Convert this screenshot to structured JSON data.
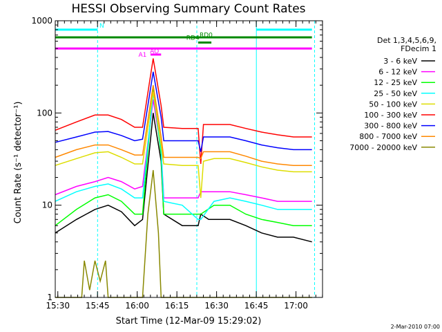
{
  "chart_data": {
    "type": "line",
    "title": "HESSI Observing Summary Count Rates",
    "xlabel": "Start Time (12-Mar-09 15:29:02)",
    "ylabel": "Count Rate (s⁻¹ detector⁻¹)",
    "ylog": true,
    "ylim": [
      1,
      1000
    ],
    "xlim_minutes": [
      0,
      101
    ],
    "x_unit": "minutes after 15:29:02",
    "x_ticks": [
      {
        "m": 0.97,
        "label": "15:30"
      },
      {
        "m": 15.97,
        "label": "15:45"
      },
      {
        "m": 30.97,
        "label": "16:00"
      },
      {
        "m": 45.97,
        "label": "16:15"
      },
      {
        "m": 60.97,
        "label": "16:30"
      },
      {
        "m": 75.97,
        "label": "16:45"
      },
      {
        "m": 90.97,
        "label": "17:00"
      }
    ],
    "y_ticks": [
      {
        "v": 1,
        "label": "1"
      },
      {
        "v": 10,
        "label": "10"
      },
      {
        "v": 100,
        "label": "100"
      },
      {
        "v": 1000,
        "label": "1000"
      }
    ],
    "legend_header": [
      "Det 1,3,4,5,6,9,",
      "FDecim 1"
    ],
    "legend_position": "right",
    "footer": "2-Mar-2010 07:00",
    "series": [
      {
        "name": "3 - 6 keV",
        "color": "#000000",
        "points": [
          [
            0,
            5
          ],
          [
            8,
            7
          ],
          [
            15,
            9
          ],
          [
            20,
            10
          ],
          [
            25,
            8.5
          ],
          [
            30,
            6
          ],
          [
            33,
            7
          ],
          [
            37,
            100
          ],
          [
            40,
            30
          ],
          [
            41,
            8
          ],
          [
            48,
            6
          ],
          [
            54,
            6
          ],
          [
            55,
            8
          ],
          [
            58,
            7
          ],
          [
            66,
            7
          ],
          [
            72,
            6
          ],
          [
            78,
            5
          ],
          [
            84,
            4.5
          ],
          [
            90,
            4.5
          ],
          [
            97,
            4
          ]
        ]
      },
      {
        "name": "6 - 12 keV",
        "color": "#ff00ff",
        "points": [
          [
            0,
            13
          ],
          [
            8,
            16
          ],
          [
            15,
            18
          ],
          [
            20,
            20
          ],
          [
            25,
            18
          ],
          [
            30,
            15
          ],
          [
            33,
            16
          ],
          [
            37,
            140
          ],
          [
            40,
            40
          ],
          [
            41,
            12
          ],
          [
            48,
            12
          ],
          [
            54,
            12
          ],
          [
            55,
            14
          ],
          [
            60,
            14
          ],
          [
            66,
            14
          ],
          [
            72,
            13
          ],
          [
            78,
            12
          ],
          [
            84,
            11
          ],
          [
            90,
            11
          ],
          [
            97,
            11
          ]
        ]
      },
      {
        "name": "12 - 25 keV",
        "color": "#00ff00",
        "points": [
          [
            0,
            6
          ],
          [
            8,
            9
          ],
          [
            15,
            12
          ],
          [
            20,
            13
          ],
          [
            25,
            11
          ],
          [
            30,
            8
          ],
          [
            33,
            8
          ],
          [
            37,
            190
          ],
          [
            40,
            35
          ],
          [
            41,
            8
          ],
          [
            48,
            8
          ],
          [
            54,
            8
          ],
          [
            55,
            8
          ],
          [
            60,
            10
          ],
          [
            66,
            10
          ],
          [
            72,
            8
          ],
          [
            78,
            7
          ],
          [
            84,
            6.5
          ],
          [
            90,
            6
          ],
          [
            97,
            6
          ]
        ]
      },
      {
        "name": "25 - 50 keV",
        "color": "#00ffff",
        "points": [
          [
            0,
            11
          ],
          [
            8,
            14
          ],
          [
            15,
            16
          ],
          [
            20,
            17
          ],
          [
            25,
            15
          ],
          [
            30,
            12
          ],
          [
            33,
            12
          ],
          [
            37,
            165
          ],
          [
            40,
            40
          ],
          [
            41,
            11
          ],
          [
            48,
            10
          ],
          [
            54,
            7
          ],
          [
            55,
            7
          ],
          [
            60,
            11
          ],
          [
            66,
            12
          ],
          [
            72,
            11
          ],
          [
            78,
            10
          ],
          [
            84,
            9
          ],
          [
            90,
            9
          ],
          [
            97,
            9
          ]
        ]
      },
      {
        "name": "50 - 100 keV",
        "color": "#dddd00",
        "points": [
          [
            0,
            27
          ],
          [
            8,
            32
          ],
          [
            15,
            37
          ],
          [
            20,
            38
          ],
          [
            25,
            33
          ],
          [
            30,
            28
          ],
          [
            33,
            28
          ],
          [
            37,
            170
          ],
          [
            40,
            45
          ],
          [
            41,
            28
          ],
          [
            48,
            27
          ],
          [
            54,
            27
          ],
          [
            55,
            12
          ],
          [
            56,
            30
          ],
          [
            60,
            32
          ],
          [
            66,
            32
          ],
          [
            72,
            29
          ],
          [
            78,
            26
          ],
          [
            84,
            24
          ],
          [
            90,
            23
          ],
          [
            97,
            23
          ]
        ]
      },
      {
        "name": "100 - 300 keV",
        "color": "#ff0000",
        "points": [
          [
            0,
            65
          ],
          [
            8,
            80
          ],
          [
            15,
            95
          ],
          [
            20,
            95
          ],
          [
            25,
            85
          ],
          [
            30,
            70
          ],
          [
            33,
            70
          ],
          [
            37,
            390
          ],
          [
            40,
            120
          ],
          [
            41,
            70
          ],
          [
            48,
            68
          ],
          [
            54,
            68
          ],
          [
            55,
            28
          ],
          [
            56,
            75
          ],
          [
            60,
            75
          ],
          [
            66,
            75
          ],
          [
            72,
            68
          ],
          [
            78,
            62
          ],
          [
            84,
            58
          ],
          [
            90,
            55
          ],
          [
            97,
            55
          ]
        ]
      },
      {
        "name": "300 - 800 keV",
        "color": "#0000ff",
        "points": [
          [
            0,
            48
          ],
          [
            8,
            55
          ],
          [
            15,
            62
          ],
          [
            20,
            63
          ],
          [
            25,
            57
          ],
          [
            30,
            50
          ],
          [
            33,
            52
          ],
          [
            37,
            280
          ],
          [
            40,
            90
          ],
          [
            41,
            50
          ],
          [
            48,
            50
          ],
          [
            54,
            50
          ],
          [
            55,
            38
          ],
          [
            56,
            55
          ],
          [
            60,
            55
          ],
          [
            66,
            55
          ],
          [
            72,
            50
          ],
          [
            78,
            45
          ],
          [
            84,
            42
          ],
          [
            90,
            40
          ],
          [
            97,
            40
          ]
        ]
      },
      {
        "name": "800 - 7000 keV",
        "color": "#ff8800",
        "points": [
          [
            0,
            33
          ],
          [
            8,
            40
          ],
          [
            15,
            45
          ],
          [
            20,
            45
          ],
          [
            25,
            40
          ],
          [
            30,
            35
          ],
          [
            33,
            35
          ],
          [
            37,
            200
          ],
          [
            40,
            55
          ],
          [
            41,
            33
          ],
          [
            48,
            33
          ],
          [
            54,
            33
          ],
          [
            55,
            32
          ],
          [
            56,
            38
          ],
          [
            60,
            38
          ],
          [
            66,
            38
          ],
          [
            72,
            34
          ],
          [
            78,
            30
          ],
          [
            84,
            28
          ],
          [
            90,
            27
          ],
          [
            97,
            27
          ]
        ]
      },
      {
        "name": "7000 - 20000 keV",
        "color": "#888800",
        "points": [
          [
            0,
            1
          ],
          [
            10,
            1
          ],
          [
            11,
            2.5
          ],
          [
            13,
            1.2
          ],
          [
            15,
            2.5
          ],
          [
            17,
            1.5
          ],
          [
            19,
            2.5
          ],
          [
            20,
            1
          ],
          [
            33,
            1
          ],
          [
            35,
            8
          ],
          [
            37,
            24
          ],
          [
            39,
            5
          ],
          [
            40,
            1
          ],
          [
            97,
            1
          ]
        ]
      }
    ],
    "annotations": {
      "upper_lines": [
        {
          "label": "N",
          "color": "#00ffff",
          "segments": [
            [
              0,
              16
            ],
            [
              76,
              97
            ]
          ],
          "level": 800
        },
        {
          "label": "",
          "color": "#008800",
          "segments": [
            [
              0,
              97
            ]
          ],
          "level": 660
        },
        {
          "label": "RD4",
          "color": "#008800",
          "segments": [
            [
              54,
              59
            ]
          ],
          "level": 580
        },
        {
          "label": "RD0",
          "color": "#008800",
          "segments": [],
          "level": 700
        },
        {
          "label": "",
          "color": "#ff00ff",
          "segments": [
            [
              0,
              97
            ]
          ],
          "level": 500
        },
        {
          "label": "AO",
          "color": "#ff00ff",
          "segments": [
            [
              36,
              40
            ]
          ],
          "level": 430
        },
        {
          "label": "A1",
          "color": "#ff00ff",
          "segments": [],
          "level": 430
        }
      ],
      "vertical_lines": [
        {
          "m": 16.0,
          "style": "dashed"
        },
        {
          "m": 53.5,
          "style": "dashed"
        },
        {
          "m": 76.0,
          "style": "solid"
        },
        {
          "m": 98.0,
          "style": "dashed"
        }
      ]
    }
  }
}
